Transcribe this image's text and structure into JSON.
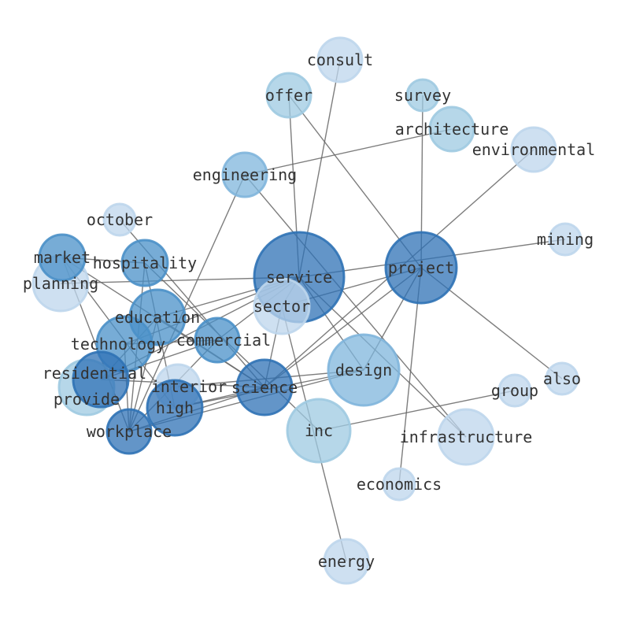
{
  "palette": {
    "dark": "#2f72b5",
    "medium": "#4a90c8",
    "mediumlight": "#7fb5dc",
    "light": "#9ecae1",
    "verylight": "#bed6ec",
    "edge": "#666666"
  },
  "nodes": [
    {
      "id": "service",
      "label": "service",
      "weight": 10,
      "shade": "dark"
    },
    {
      "id": "project",
      "label": "project",
      "weight": 8,
      "shade": "dark"
    },
    {
      "id": "design",
      "label": "design",
      "weight": 8,
      "shade": "mediumlight"
    },
    {
      "id": "inc",
      "label": "inc",
      "weight": 7,
      "shade": "light"
    },
    {
      "id": "sector",
      "label": "sector",
      "weight": 6,
      "shade": "verylight"
    },
    {
      "id": "infrastructure",
      "label": "infrastructure",
      "weight": 6,
      "shade": "verylight"
    },
    {
      "id": "planning",
      "label": "planning",
      "weight": 6,
      "shade": "verylight"
    },
    {
      "id": "provide",
      "label": "provide",
      "weight": 6,
      "shade": "light"
    },
    {
      "id": "consult",
      "label": "consult",
      "weight": 5,
      "shade": "verylight"
    },
    {
      "id": "offer",
      "label": "offer",
      "weight": 5,
      "shade": "light"
    },
    {
      "id": "survey",
      "label": "survey",
      "weight": 3,
      "shade": "light"
    },
    {
      "id": "architecture",
      "label": "architecture",
      "weight": 5,
      "shade": "light"
    },
    {
      "id": "environmental",
      "label": "environmental",
      "weight": 5,
      "shade": "verylight"
    },
    {
      "id": "engineering",
      "label": "engineering",
      "weight": 5,
      "shade": "mediumlight"
    },
    {
      "id": "october",
      "label": "october",
      "weight": 3,
      "shade": "verylight"
    },
    {
      "id": "market",
      "label": "market",
      "weight": 5,
      "shade": "medium"
    },
    {
      "id": "hospitality",
      "label": "hospitality",
      "weight": 5,
      "shade": "medium"
    },
    {
      "id": "mining",
      "label": "mining",
      "weight": 3,
      "shade": "verylight"
    },
    {
      "id": "education",
      "label": "education",
      "weight": 6,
      "shade": "medium"
    },
    {
      "id": "technology",
      "label": "technology",
      "weight": 6,
      "shade": "medium"
    },
    {
      "id": "commercial",
      "label": "commercial",
      "weight": 5,
      "shade": "medium"
    },
    {
      "id": "residential",
      "label": "residential",
      "weight": 6,
      "shade": "dark"
    },
    {
      "id": "interior",
      "label": "interior",
      "weight": 5,
      "shade": "verylight"
    },
    {
      "id": "science",
      "label": "science",
      "weight": 6,
      "shade": "dark"
    },
    {
      "id": "high",
      "label": "high",
      "weight": 6,
      "shade": "dark"
    },
    {
      "id": "workplace",
      "label": "workplace",
      "weight": 5,
      "shade": "dark"
    },
    {
      "id": "group",
      "label": "group",
      "weight": 3,
      "shade": "verylight"
    },
    {
      "id": "also",
      "label": "also",
      "weight": 3,
      "shade": "verylight"
    },
    {
      "id": "economics",
      "label": "economics",
      "weight": 3,
      "shade": "verylight"
    },
    {
      "id": "energy",
      "label": "energy",
      "weight": 5,
      "shade": "verylight"
    }
  ],
  "edges": [
    [
      "consult",
      "service"
    ],
    [
      "offer",
      "service"
    ],
    [
      "offer",
      "project"
    ],
    [
      "survey",
      "project"
    ],
    [
      "architecture",
      "engineering"
    ],
    [
      "environmental",
      "science"
    ],
    [
      "mining",
      "service"
    ],
    [
      "planning",
      "service"
    ],
    [
      "project",
      "also"
    ],
    [
      "project",
      "economics"
    ],
    [
      "project",
      "design"
    ],
    [
      "project",
      "science"
    ],
    [
      "project",
      "sector"
    ],
    [
      "service",
      "infrastructure"
    ],
    [
      "service",
      "design"
    ],
    [
      "service",
      "sector"
    ],
    [
      "service",
      "education"
    ],
    [
      "service",
      "technology"
    ],
    [
      "service",
      "residential"
    ],
    [
      "service",
      "commercial"
    ],
    [
      "engineering",
      "infrastructure"
    ],
    [
      "engineering",
      "workplace"
    ],
    [
      "october",
      "science"
    ],
    [
      "market",
      "science"
    ],
    [
      "market",
      "workplace"
    ],
    [
      "market",
      "high"
    ],
    [
      "market",
      "hospitality"
    ],
    [
      "hospitality",
      "workplace"
    ],
    [
      "hospitality",
      "high"
    ],
    [
      "hospitality",
      "inc"
    ],
    [
      "sector",
      "science"
    ],
    [
      "sector",
      "energy"
    ],
    [
      "inc",
      "group"
    ],
    [
      "design",
      "high"
    ],
    [
      "design",
      "workplace"
    ],
    [
      "design",
      "interior"
    ],
    [
      "science",
      "residential"
    ],
    [
      "science",
      "high"
    ],
    [
      "science",
      "workplace"
    ],
    [
      "science",
      "education"
    ],
    [
      "commercial",
      "residential"
    ],
    [
      "commercial",
      "workplace"
    ],
    [
      "commercial",
      "technology"
    ],
    [
      "education",
      "workplace"
    ],
    [
      "education",
      "residential"
    ],
    [
      "technology",
      "workplace"
    ]
  ]
}
